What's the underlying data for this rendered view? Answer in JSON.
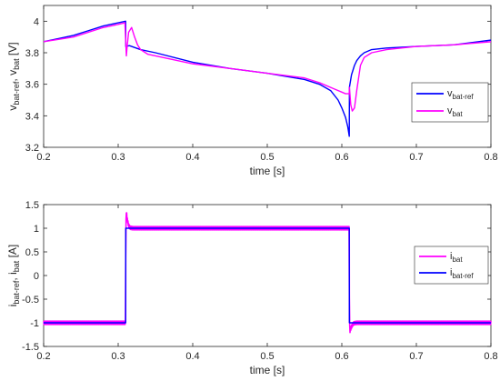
{
  "chart_data": [
    {
      "type": "line",
      "xlabel": "time [s]",
      "ylabel": {
        "main1": "v",
        "sub1": "bat-ref",
        "sep": ", v",
        "sub2": "bat",
        "unit": " [V]"
      },
      "xlim": [
        0.2,
        0.8
      ],
      "ylim": [
        3.2,
        4.1
      ],
      "xticks": [
        0.2,
        0.3,
        0.4,
        0.5,
        0.6,
        0.7,
        0.8
      ],
      "yticks": [
        3.2,
        3.4,
        3.6,
        3.8,
        4.0
      ],
      "xtick_labels": [
        "0.2",
        "0.3",
        "0.4",
        "0.5",
        "0.6",
        "0.7",
        "0.8"
      ],
      "ytick_labels": [
        "3.2",
        "3.4",
        "3.6",
        "3.8",
        "4"
      ],
      "grid": false,
      "legend_position": "right",
      "series": [
        {
          "key": "vbat-ref",
          "name": {
            "main": "v",
            "sub": "bat-ref"
          },
          "color": "#0000ff",
          "x": [
            0.2,
            0.22,
            0.24,
            0.26,
            0.28,
            0.3,
            0.31,
            0.3102,
            0.315,
            0.33,
            0.35,
            0.4,
            0.45,
            0.5,
            0.55,
            0.57,
            0.585,
            0.595,
            0.6,
            0.605,
            0.608,
            0.61,
            0.6102,
            0.613,
            0.617,
            0.62,
            0.625,
            0.63,
            0.64,
            0.66,
            0.7,
            0.75,
            0.8
          ],
          "y": [
            3.87,
            3.89,
            3.91,
            3.94,
            3.97,
            3.99,
            4.0,
            3.84,
            3.845,
            3.82,
            3.8,
            3.74,
            3.7,
            3.67,
            3.63,
            3.6,
            3.56,
            3.5,
            3.45,
            3.39,
            3.33,
            3.27,
            3.58,
            3.66,
            3.72,
            3.75,
            3.78,
            3.8,
            3.82,
            3.83,
            3.84,
            3.85,
            3.88
          ]
        },
        {
          "key": "vbat",
          "name": {
            "main": "v",
            "sub": "bat"
          },
          "color": "#ff00ff",
          "x": [
            0.2,
            0.22,
            0.24,
            0.26,
            0.28,
            0.3,
            0.309,
            0.311,
            0.312,
            0.314,
            0.318,
            0.322,
            0.326,
            0.33,
            0.34,
            0.36,
            0.4,
            0.45,
            0.5,
            0.55,
            0.57,
            0.59,
            0.6,
            0.605,
            0.608,
            0.61,
            0.6102,
            0.612,
            0.614,
            0.617,
            0.62,
            0.625,
            0.63,
            0.64,
            0.66,
            0.7,
            0.75,
            0.8
          ],
          "y": [
            3.87,
            3.885,
            3.9,
            3.93,
            3.96,
            3.98,
            3.99,
            3.78,
            3.84,
            3.93,
            3.96,
            3.9,
            3.85,
            3.82,
            3.79,
            3.77,
            3.73,
            3.7,
            3.67,
            3.64,
            3.61,
            3.57,
            3.55,
            3.54,
            3.54,
            3.54,
            3.58,
            3.47,
            3.43,
            3.45,
            3.56,
            3.72,
            3.77,
            3.8,
            3.82,
            3.84,
            3.85,
            3.87
          ]
        }
      ]
    },
    {
      "type": "line",
      "xlabel": "time [s]",
      "ylabel": {
        "main1": "i",
        "sub1": "bat-ref",
        "sep": ", i",
        "sub2": "bat",
        "unit": " [A]"
      },
      "xlim": [
        0.2,
        0.8
      ],
      "ylim": [
        -1.5,
        1.5
      ],
      "xticks": [
        0.2,
        0.3,
        0.4,
        0.5,
        0.6,
        0.7,
        0.8
      ],
      "yticks": [
        -1.5,
        -1,
        -0.5,
        0,
        0.5,
        1,
        1.5
      ],
      "xtick_labels": [
        "0.2",
        "0.3",
        "0.4",
        "0.5",
        "0.6",
        "0.7",
        "0.8"
      ],
      "ytick_labels": [
        "-1.5",
        "-1",
        "-0.5",
        "0",
        "0.5",
        "1",
        "1.5"
      ],
      "grid": false,
      "legend_position": "right",
      "series": [
        {
          "key": "ibat",
          "name": {
            "main": "i",
            "sub": "bat"
          },
          "color": "#ff00ff",
          "noise": 0.035,
          "x": [
            0.2,
            0.31,
            0.3102,
            0.311,
            0.312,
            0.314,
            0.316,
            0.32,
            0.61,
            0.6102,
            0.611,
            0.612,
            0.614,
            0.616,
            0.62,
            0.8
          ],
          "y": [
            -1.0,
            -1.0,
            1.0,
            1.36,
            1.2,
            1.06,
            1.01,
            1.0,
            1.0,
            -1.0,
            -1.17,
            -1.12,
            -1.05,
            -1.01,
            -1.0,
            -1.0
          ]
        },
        {
          "key": "ibat-ref",
          "name": {
            "main": "i",
            "sub": "bat-ref"
          },
          "color": "#0000ff",
          "noise": 0,
          "x": [
            0.2,
            0.31,
            0.3102,
            0.61,
            0.6102,
            0.8
          ],
          "y": [
            -1.0,
            -1.0,
            1.0,
            1.0,
            -1.0,
            -1.0
          ]
        }
      ]
    }
  ]
}
